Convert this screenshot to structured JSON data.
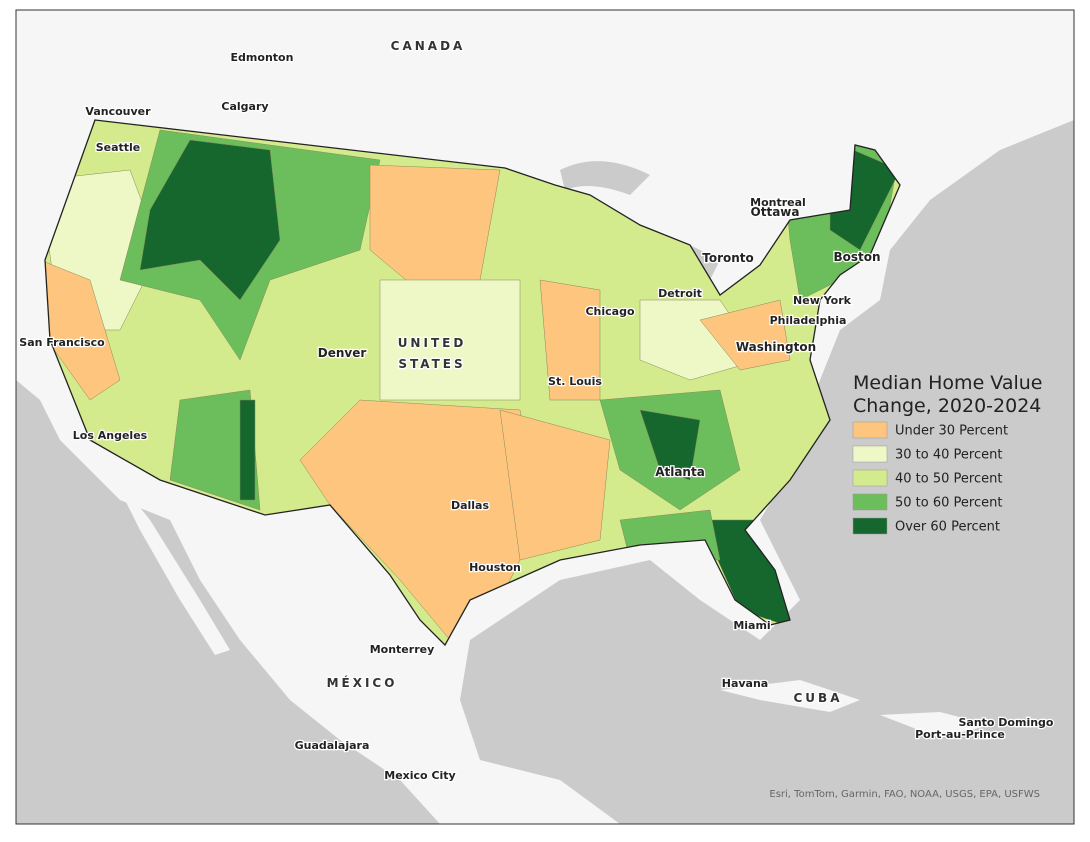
{
  "map": {
    "labels": {
      "canada": "CANADA",
      "edmonton": "Edmonton",
      "calgary": "Calgary",
      "vancouver": "Vancouver",
      "seattle": "Seattle",
      "san_francisco": "San Francisco",
      "los_angeles": "Los Angeles",
      "denver": "Denver",
      "united": "UNITED",
      "states": "STATES",
      "st_louis": "St. Louis",
      "chicago": "Chicago",
      "detroit": "Detroit",
      "toronto": "Toronto",
      "ottawa": "Ottawa",
      "montreal": "Montreal",
      "boston": "Boston",
      "new_york": "New York",
      "philadelphia": "Philadelphia",
      "washington": "Washington",
      "atlanta": "Atlanta",
      "dallas": "Dallas",
      "houston": "Houston",
      "miami": "Miami",
      "monterrey": "Monterrey",
      "mexico": "MÉXICO",
      "havana": "Havana",
      "cuba": "CUBA",
      "santo_domingo": "Santo Domingo",
      "port_au_prince": "Port-au-Prince",
      "guadalajara": "Guadalajara",
      "mexico_city": "Mexico City"
    },
    "legend": {
      "title_lines": [
        "Median Home Value",
        "Change, 2020-2024"
      ],
      "items": [
        {
          "label": "Under 30 Percent",
          "color": "#fdc57d"
        },
        {
          "label": "30 to 40 Percent",
          "color": "#eef8c6"
        },
        {
          "label": "40 to 50 Percent",
          "color": "#d3eb8c"
        },
        {
          "label": "50 to 60 Percent",
          "color": "#6cbd5b"
        },
        {
          "label": "Over 60 Percent",
          "color": "#15672e"
        }
      ]
    },
    "attribution": "Esri, TomTom, Garmin, FAO, NOAA, USGS, EPA, USFWS"
  }
}
